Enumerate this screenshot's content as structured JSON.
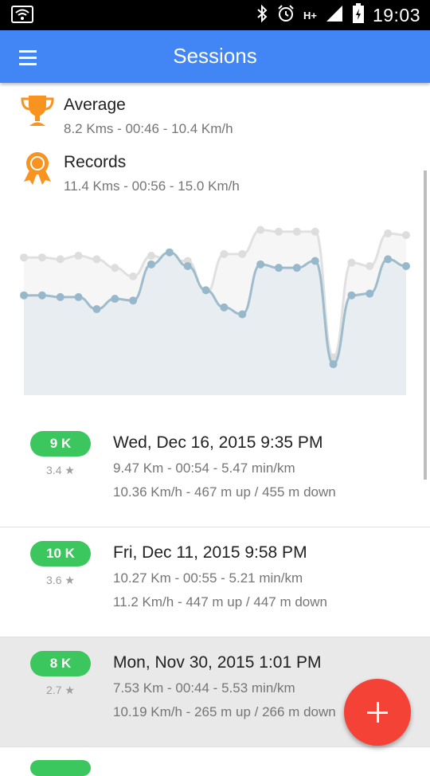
{
  "status_bar": {
    "time": "19:03",
    "icons": [
      "wifi-icon",
      "bluetooth-icon",
      "alarm-icon",
      "hplus-icon",
      "signal-icon",
      "battery-icon"
    ],
    "network_label": "H+"
  },
  "app_bar": {
    "title": "Sessions",
    "menu_icon": "hamburger-menu-icon",
    "color": "#4285f4"
  },
  "summary": {
    "average": {
      "title": "Average",
      "detail": "8.2 Kms - 00:46 - 10.4 Km/h",
      "icon": "trophy-icon",
      "color": "#f7931e"
    },
    "records": {
      "title": "Records",
      "detail": "11.4 Kms - 00:56 - 15.0 Km/h",
      "icon": "award-ribbon-icon",
      "color": "#f7931e"
    }
  },
  "chart_data": {
    "type": "area",
    "series": [
      {
        "color": "#eeeeee",
        "values": [
          0.8,
          0.8,
          0.79,
          0.81,
          0.79,
          0.74,
          0.69,
          0.81,
          0.78,
          0.78,
          0.59,
          0.82,
          0.82,
          0.96,
          0.95,
          0.95,
          0.95,
          0.22,
          0.77,
          0.75,
          0.94,
          0.93
        ]
      },
      {
        "color": "#a9c3d3",
        "values": [
          0.58,
          0.58,
          0.57,
          0.57,
          0.5,
          0.56,
          0.55,
          0.76,
          0.83,
          0.75,
          0.61,
          0.51,
          0.47,
          0.76,
          0.74,
          0.74,
          0.78,
          0.18,
          0.58,
          0.59,
          0.79,
          0.75
        ]
      }
    ],
    "ylim": [
      0,
      1
    ]
  },
  "sessions": [
    {
      "badge": "9 K",
      "rating": "3.4 ★",
      "date": "Wed, Dec 16, 2015 9:35 PM",
      "line1": "9.47 Km - 00:54 - 5.47 min/km",
      "line2": "10.36 Km/h - 467 m up / 455 m down"
    },
    {
      "badge": "10 K",
      "rating": "3.6 ★",
      "date": "Fri, Dec 11, 2015 9:58 PM",
      "line1": "10.27 Km - 00:55 - 5.21 min/km",
      "line2": "11.2 Km/h - 447 m up / 447 m down"
    },
    {
      "badge": "8 K",
      "rating": "2.7 ★",
      "date": "Mon, Nov 30, 2015 1:01 PM",
      "line1": "7.53 Km - 00:44 - 5.53 min/km",
      "line2": "10.19 Km/h - 265 m up / 266 m down"
    }
  ],
  "fab": {
    "icon": "plus-icon",
    "color": "#f44336"
  }
}
